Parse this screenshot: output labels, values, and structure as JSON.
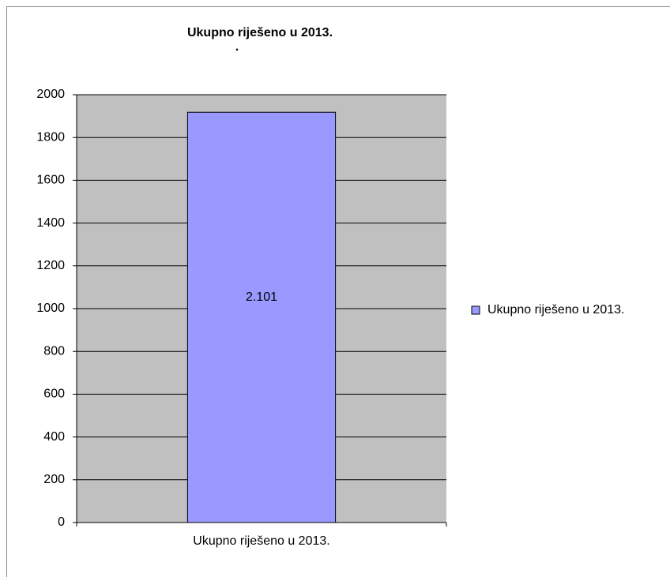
{
  "chart_data": {
    "type": "bar",
    "title": "Ukupno riješeno u 2013.",
    "subtitle": ".",
    "categories": [
      "Ukupno riješeno u 2013."
    ],
    "series": [
      {
        "name": "Ukupno riješeno u 2013.",
        "color": "#9999ff",
        "values": [
          1918
        ]
      }
    ],
    "annotation": "2.101",
    "ylim": [
      0,
      2000
    ],
    "yticks": [
      0,
      200,
      400,
      600,
      800,
      1000,
      1200,
      1400,
      1600,
      1800,
      2000
    ],
    "grid": true,
    "plot_background": "#c0c0c0",
    "legend": "right"
  }
}
